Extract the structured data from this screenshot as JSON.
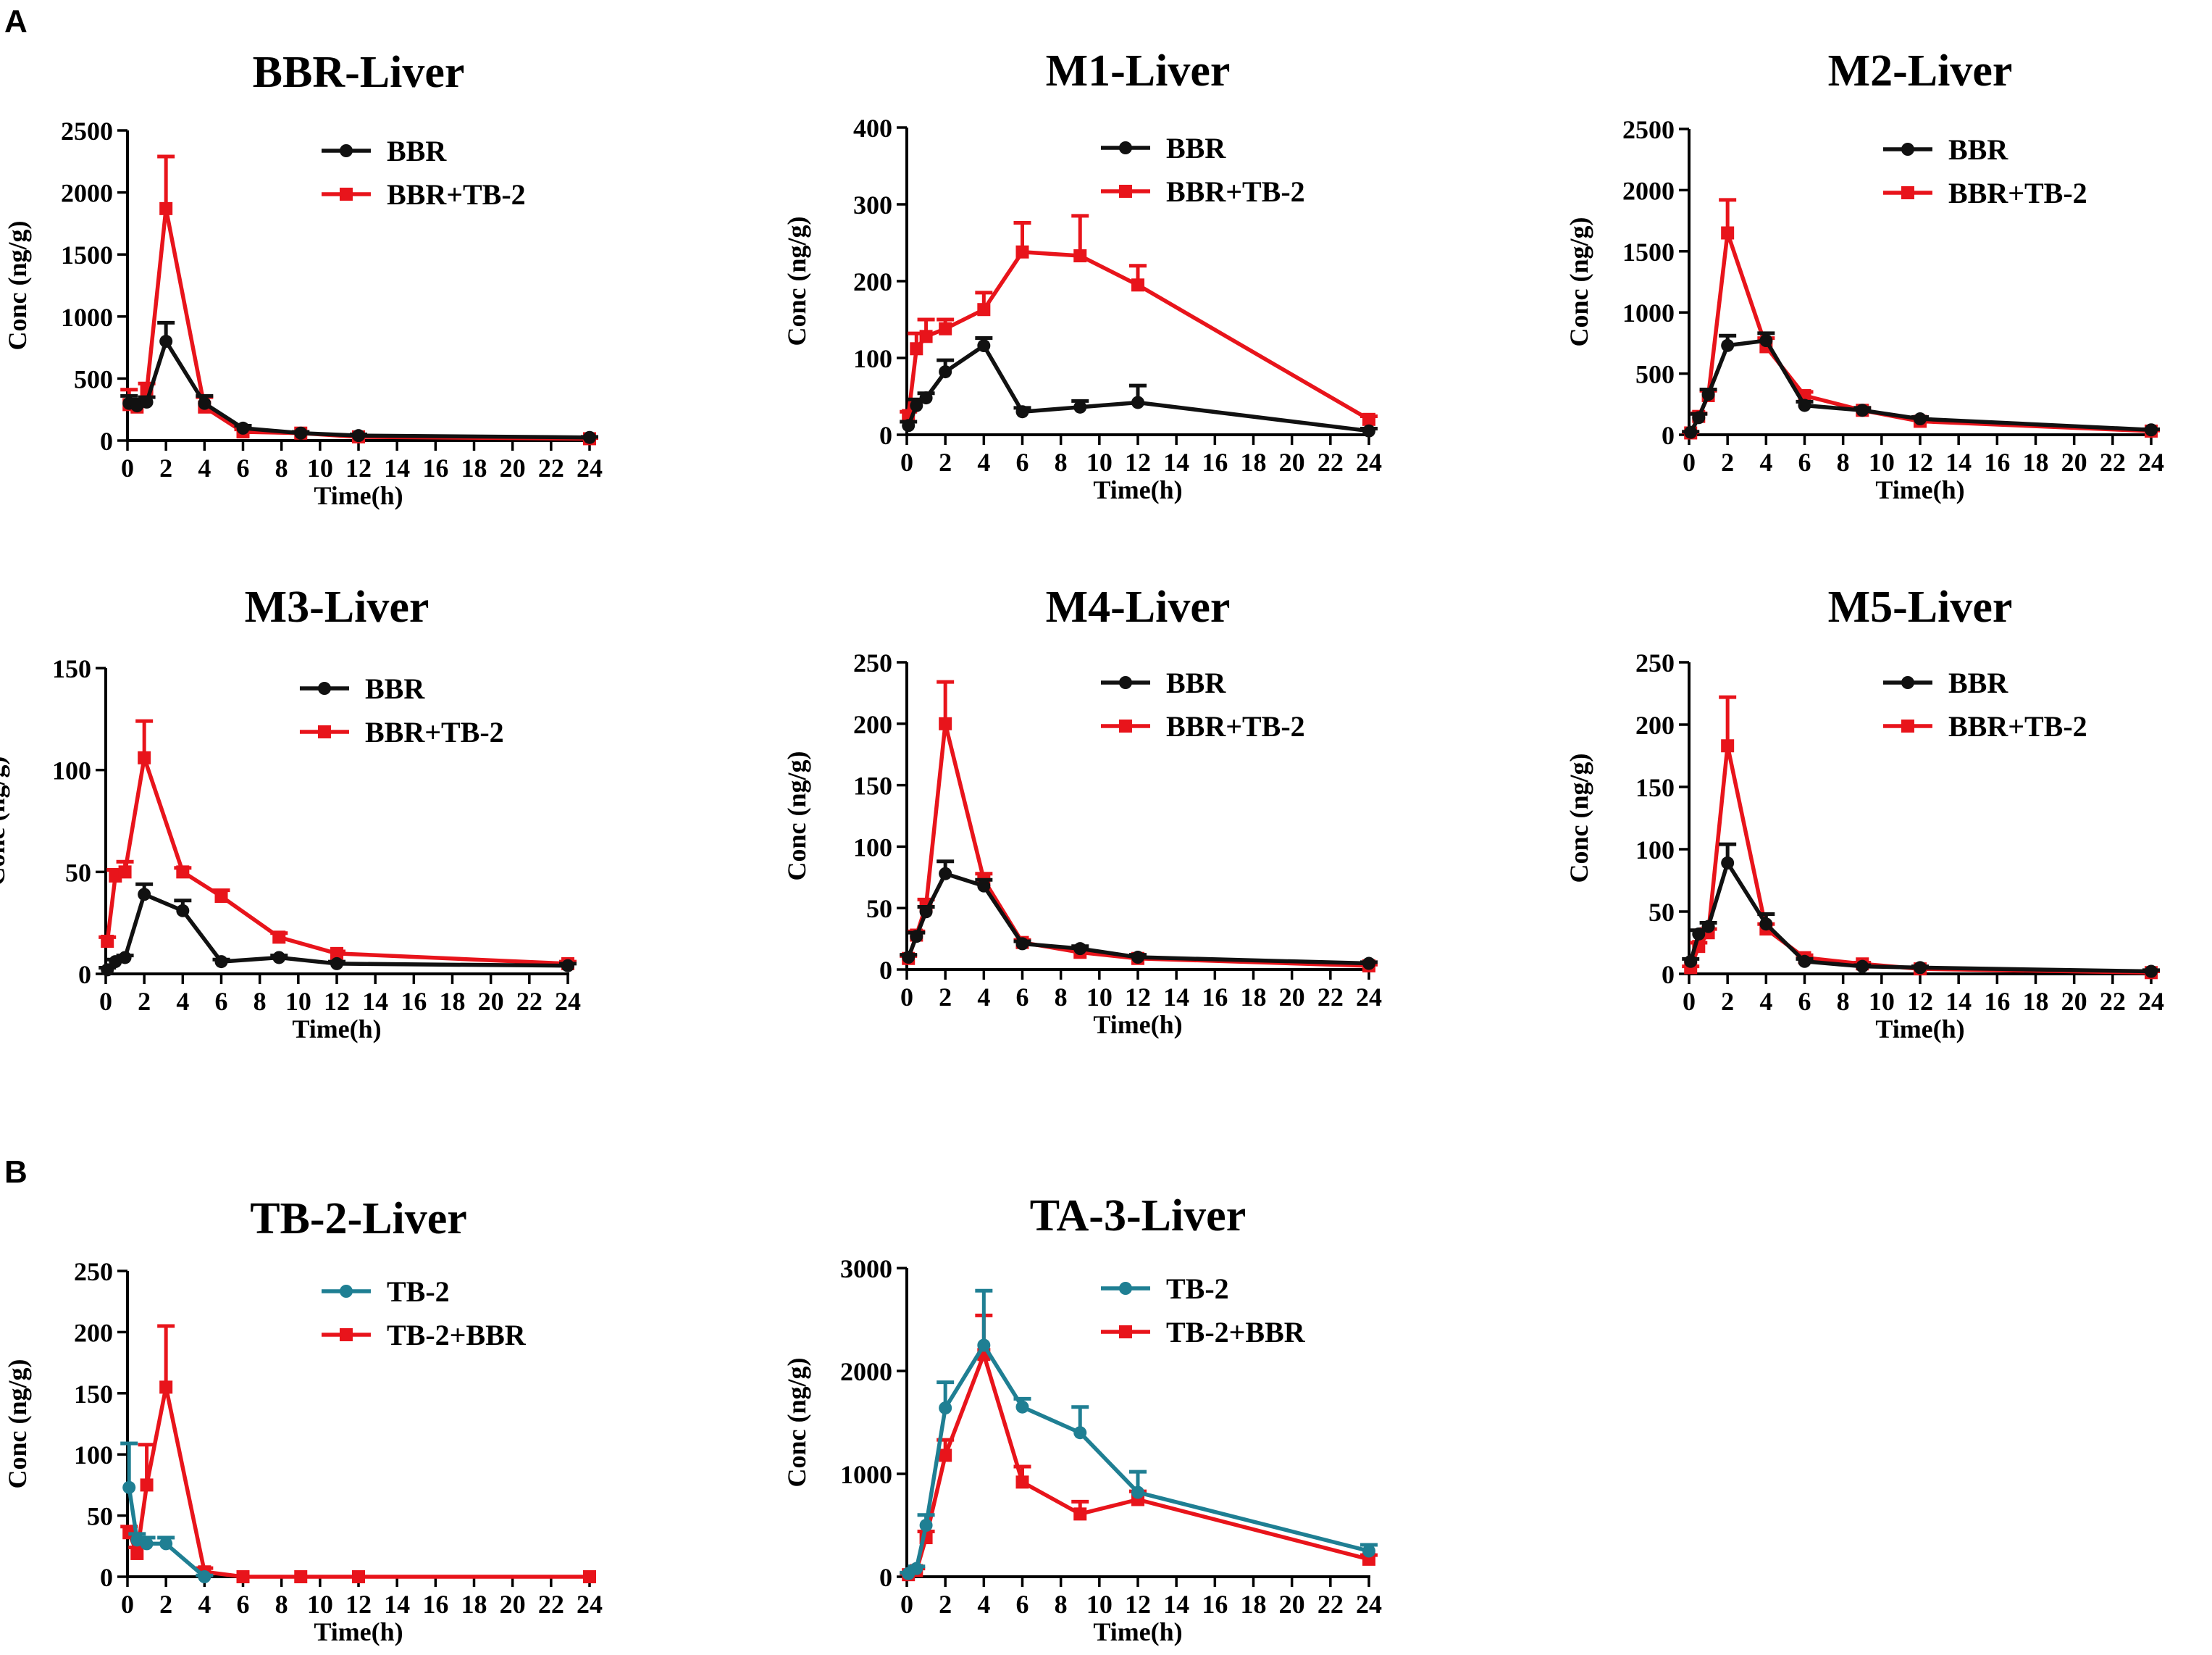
{
  "panel_labels": [
    "A",
    "B"
  ],
  "colors": {
    "black": "#111111",
    "red": "#e8141b",
    "teal": "#1f7f93"
  },
  "chart_data": [
    {
      "type": "line",
      "title": "BBR-Liver",
      "xlabel": "Time(h)",
      "ylabel": "Conc (ng/g)",
      "xlim": [
        0,
        24
      ],
      "ylim": [
        0,
        2500
      ],
      "xticks": [
        0,
        2,
        4,
        6,
        8,
        10,
        12,
        14,
        16,
        18,
        20,
        22,
        24
      ],
      "yticks": [
        0,
        500,
        1000,
        1500,
        2000,
        2500
      ],
      "legend_position": "top-right",
      "series": [
        {
          "name": "BBR",
          "color": "#111111",
          "marker": "circle",
          "x": [
            0.083,
            0.5,
            1,
            2,
            4,
            6,
            9,
            12,
            24
          ],
          "y": [
            300,
            280,
            310,
            800,
            300,
            100,
            60,
            40,
            25
          ],
          "err": [
            60,
            50,
            40,
            150,
            60,
            20,
            10,
            10,
            5
          ]
        },
        {
          "name": "BBR+TB-2",
          "color": "#e8141b",
          "marker": "square",
          "x": [
            0.083,
            0.5,
            1,
            2,
            4,
            6,
            9,
            12,
            24
          ],
          "y": [
            290,
            270,
            400,
            1870,
            270,
            70,
            60,
            30,
            15
          ],
          "err": [
            120,
            60,
            60,
            420,
            80,
            20,
            10,
            10,
            5
          ]
        }
      ]
    },
    {
      "type": "line",
      "title": "M1-Liver",
      "xlabel": "Time(h)",
      "ylabel": "Conc (ng/g)",
      "xlim": [
        0,
        24
      ],
      "ylim": [
        0,
        400
      ],
      "xticks": [
        0,
        2,
        4,
        6,
        8,
        10,
        12,
        14,
        16,
        18,
        20,
        22,
        24
      ],
      "yticks": [
        0,
        100,
        200,
        300,
        400
      ],
      "legend_position": "top-right",
      "series": [
        {
          "name": "BBR",
          "color": "#111111",
          "marker": "circle",
          "x": [
            0.083,
            0.5,
            1,
            2,
            4,
            6,
            9,
            12,
            24
          ],
          "y": [
            12,
            38,
            48,
            82,
            116,
            30,
            36,
            42,
            5
          ],
          "err": [
            5,
            8,
            6,
            15,
            10,
            5,
            8,
            22,
            3
          ]
        },
        {
          "name": "BBR+TB-2",
          "color": "#e8141b",
          "marker": "square",
          "x": [
            0.083,
            0.5,
            1,
            2,
            4,
            6,
            9,
            12,
            24
          ],
          "y": [
            25,
            112,
            128,
            138,
            163,
            238,
            233,
            195,
            20
          ],
          "err": [
            5,
            20,
            22,
            12,
            22,
            38,
            52,
            25,
            4
          ]
        }
      ]
    },
    {
      "type": "line",
      "title": "M2-Liver",
      "xlabel": "Time(h)",
      "ylabel": "Conc (ng/g)",
      "xlim": [
        0,
        24
      ],
      "ylim": [
        0,
        2500
      ],
      "xticks": [
        0,
        2,
        4,
        6,
        8,
        10,
        12,
        14,
        16,
        18,
        20,
        22,
        24
      ],
      "yticks": [
        0,
        500,
        1000,
        1500,
        2000,
        2500
      ],
      "legend_position": "top-right",
      "series": [
        {
          "name": "BBR",
          "color": "#111111",
          "marker": "circle",
          "x": [
            0.083,
            0.5,
            1,
            2,
            4,
            6,
            9,
            12,
            24
          ],
          "y": [
            20,
            140,
            330,
            730,
            770,
            240,
            200,
            130,
            40
          ],
          "err": [
            5,
            30,
            40,
            80,
            60,
            30,
            20,
            15,
            5
          ]
        },
        {
          "name": "BBR+TB-2",
          "color": "#e8141b",
          "marker": "square",
          "x": [
            0.083,
            0.5,
            1,
            2,
            4,
            6,
            9,
            12,
            24
          ],
          "y": [
            15,
            150,
            320,
            1650,
            720,
            320,
            200,
            110,
            30
          ],
          "err": [
            5,
            25,
            40,
            270,
            70,
            30,
            20,
            15,
            5
          ]
        }
      ]
    },
    {
      "type": "line",
      "title": "M3-Liver",
      "xlabel": "Time(h)",
      "ylabel": "Conc (ng/g)",
      "xlim": [
        0,
        24
      ],
      "ylim": [
        0,
        150
      ],
      "xticks": [
        0,
        2,
        4,
        6,
        8,
        10,
        12,
        14,
        16,
        18,
        20,
        22,
        24
      ],
      "yticks": [
        0,
        50,
        100,
        150
      ],
      "legend_position": "top-right",
      "series": [
        {
          "name": "BBR",
          "color": "#111111",
          "marker": "circle",
          "x": [
            0.083,
            0.5,
            1,
            2,
            4,
            6,
            9,
            12,
            24
          ],
          "y": [
            2,
            6,
            8,
            39,
            31,
            6,
            8,
            5,
            4
          ],
          "err": [
            1,
            1,
            1,
            5,
            5,
            1,
            1,
            1,
            1
          ]
        },
        {
          "name": "BBR+TB-2",
          "color": "#e8141b",
          "marker": "square",
          "x": [
            0.083,
            0.5,
            1,
            2,
            4,
            6,
            9,
            12,
            24
          ],
          "y": [
            16,
            48,
            50,
            106,
            50,
            38,
            18,
            10,
            5
          ],
          "err": [
            2,
            3,
            5,
            18,
            2,
            3,
            2,
            1,
            1
          ]
        }
      ]
    },
    {
      "type": "line",
      "title": "M4-Liver",
      "xlabel": "Time(h)",
      "ylabel": "Conc (ng/g)",
      "xlim": [
        0,
        24
      ],
      "ylim": [
        0,
        250
      ],
      "xticks": [
        0,
        2,
        4,
        6,
        8,
        10,
        12,
        14,
        16,
        18,
        20,
        22,
        24
      ],
      "yticks": [
        0,
        50,
        100,
        150,
        200,
        250
      ],
      "legend_position": "top-right",
      "series": [
        {
          "name": "BBR",
          "color": "#111111",
          "marker": "circle",
          "x": [
            0.083,
            0.5,
            1,
            2,
            4,
            6,
            9,
            12,
            24
          ],
          "y": [
            10,
            27,
            47,
            78,
            68,
            21,
            17,
            10,
            5
          ],
          "err": [
            2,
            3,
            4,
            10,
            5,
            2,
            2,
            2,
            1
          ]
        },
        {
          "name": "BBR+TB-2",
          "color": "#e8141b",
          "marker": "square",
          "x": [
            0.083,
            0.5,
            1,
            2,
            4,
            6,
            9,
            12,
            24
          ],
          "y": [
            9,
            28,
            52,
            200,
            73,
            22,
            14,
            9,
            3
          ],
          "err": [
            2,
            3,
            5,
            34,
            5,
            2,
            2,
            1,
            1
          ]
        }
      ]
    },
    {
      "type": "line",
      "title": "M5-Liver",
      "xlabel": "Time(h)",
      "ylabel": "Conc (ng/g)",
      "xlim": [
        0,
        24
      ],
      "ylim": [
        0,
        250
      ],
      "xticks": [
        0,
        2,
        4,
        6,
        8,
        10,
        12,
        14,
        16,
        18,
        20,
        22,
        24
      ],
      "yticks": [
        0,
        50,
        100,
        150,
        200,
        250
      ],
      "legend_position": "top-right",
      "series": [
        {
          "name": "BBR",
          "color": "#111111",
          "marker": "circle",
          "x": [
            0.083,
            0.5,
            1,
            2,
            4,
            6,
            9,
            12,
            24
          ],
          "y": [
            10,
            32,
            38,
            89,
            40,
            10,
            6,
            5,
            2
          ],
          "err": [
            2,
            3,
            3,
            15,
            8,
            2,
            1,
            1,
            1
          ]
        },
        {
          "name": "BBR+TB-2",
          "color": "#e8141b",
          "marker": "square",
          "x": [
            0.083,
            0.5,
            1,
            2,
            4,
            6,
            9,
            12,
            24
          ],
          "y": [
            5,
            22,
            33,
            183,
            36,
            13,
            8,
            4,
            1
          ],
          "err": [
            1,
            3,
            3,
            39,
            4,
            2,
            1,
            1,
            1
          ]
        }
      ]
    },
    {
      "type": "line",
      "title": "TB-2-Liver",
      "xlabel": "Time(h)",
      "ylabel": "Conc (ng/g)",
      "xlim": [
        0,
        24
      ],
      "ylim": [
        0,
        250
      ],
      "xticks": [
        0,
        2,
        4,
        6,
        8,
        10,
        12,
        14,
        16,
        18,
        20,
        22,
        24
      ],
      "yticks": [
        0,
        50,
        100,
        150,
        200,
        250
      ],
      "legend_position": "top-right",
      "series": [
        {
          "name": "TB-2",
          "color": "#1f7f93",
          "marker": "circle",
          "x": [
            0.083,
            0.5,
            1,
            2,
            4
          ],
          "y": [
            73,
            30,
            27,
            27,
            0
          ],
          "err": [
            36,
            5,
            5,
            5,
            1
          ]
        },
        {
          "name": "TB-2+BBR",
          "color": "#e8141b",
          "marker": "square",
          "x": [
            0.083,
            0.5,
            1,
            2,
            4,
            6,
            9,
            12,
            24
          ],
          "y": [
            36,
            19,
            75,
            155,
            4,
            0,
            0,
            0,
            0
          ],
          "err": [
            5,
            5,
            33,
            50,
            3,
            0,
            0,
            0,
            0
          ]
        }
      ]
    },
    {
      "type": "line",
      "title": "TA-3-Liver",
      "xlabel": "Time(h)",
      "ylabel": "Conc (ng/g)",
      "xlim": [
        0,
        24
      ],
      "ylim": [
        0,
        3000
      ],
      "xticks": [
        0,
        2,
        4,
        6,
        8,
        10,
        12,
        14,
        16,
        18,
        20,
        22,
        24
      ],
      "yticks": [
        0,
        1000,
        2000,
        3000
      ],
      "legend_position": "top-right",
      "series": [
        {
          "name": "TB-2",
          "color": "#1f7f93",
          "marker": "circle",
          "x": [
            0.083,
            0.5,
            1,
            2,
            4,
            6,
            9,
            12,
            24
          ],
          "y": [
            30,
            80,
            500,
            1640,
            2250,
            1650,
            1400,
            820,
            250
          ],
          "err": [
            10,
            20,
            100,
            250,
            530,
            80,
            250,
            200,
            60
          ]
        },
        {
          "name": "TB-2+BBR",
          "color": "#e8141b",
          "marker": "square",
          "x": [
            0.083,
            0.5,
            1,
            2,
            4,
            6,
            9,
            12,
            24
          ],
          "y": [
            20,
            60,
            380,
            1180,
            2160,
            920,
            610,
            750,
            170
          ],
          "err": [
            10,
            20,
            60,
            150,
            380,
            150,
            120,
            80,
            40
          ]
        }
      ]
    }
  ]
}
